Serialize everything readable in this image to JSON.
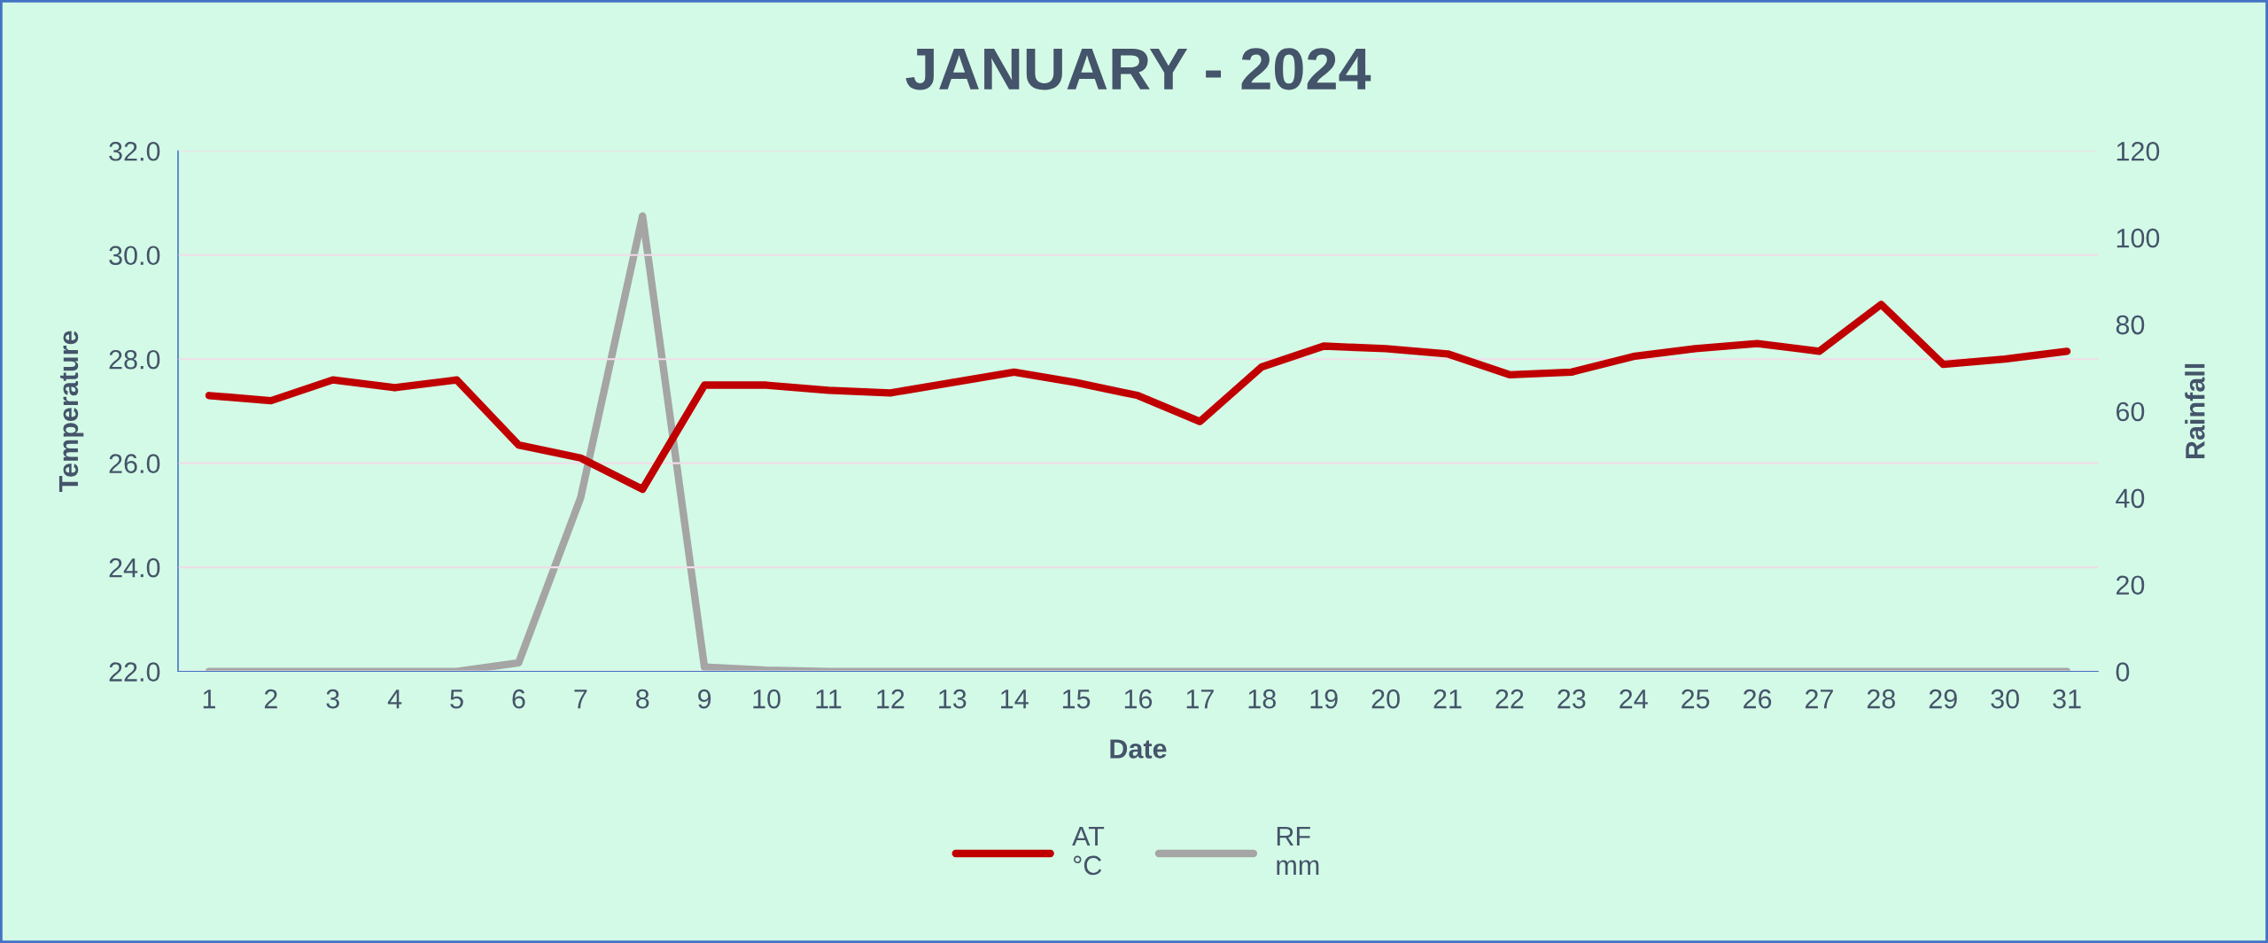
{
  "chart_data": {
    "type": "line",
    "title": "JANUARY - 2024",
    "xlabel": "Date",
    "ylabel": "Temperature",
    "y2label": "Rainfall",
    "categories": [
      "1",
      "2",
      "3",
      "4",
      "5",
      "6",
      "7",
      "8",
      "9",
      "10",
      "11",
      "12",
      "13",
      "14",
      "15",
      "16",
      "17",
      "18",
      "19",
      "20",
      "21",
      "22",
      "23",
      "24",
      "25",
      "26",
      "27",
      "28",
      "29",
      "30",
      "31"
    ],
    "series": [
      {
        "name": "AT\n°C",
        "color": "#c00000",
        "values": [
          27.3,
          27.2,
          27.6,
          27.45,
          27.6,
          26.35,
          26.1,
          25.5,
          27.5,
          27.5,
          27.4,
          27.35,
          27.55,
          27.75,
          27.55,
          27.3,
          26.8,
          27.85,
          28.25,
          28.2,
          28.1,
          27.7,
          27.75,
          28.05,
          28.2,
          28.3,
          28.15,
          29.05,
          27.9,
          28.0,
          28.15
        ]
      },
      {
        "name": "RF\nmm",
        "color": "#a5a5a5",
        "axis": "y2",
        "values": [
          0,
          0,
          0,
          0,
          0,
          2,
          40,
          105,
          1,
          0.3,
          0,
          0,
          0,
          0,
          0,
          0,
          0,
          0,
          0,
          0,
          0,
          0,
          0,
          0,
          0,
          0,
          0,
          0,
          0,
          0,
          0
        ]
      }
    ],
    "ylim": [
      22,
      32
    ],
    "yticks": [
      {
        "value": 22,
        "label": "22.0"
      },
      {
        "value": 24,
        "label": "24.0"
      },
      {
        "value": 26,
        "label": "26.0"
      },
      {
        "value": 28,
        "label": "28.0"
      },
      {
        "value": 30,
        "label": "30.0"
      },
      {
        "value": 32,
        "label": "32.0"
      }
    ],
    "y2lim": [
      0,
      120
    ],
    "y2ticks": [
      0,
      20,
      40,
      60,
      80,
      100,
      120
    ],
    "grid": "y",
    "legend": "bottom",
    "marker": "none",
    "line_style": "solid"
  }
}
